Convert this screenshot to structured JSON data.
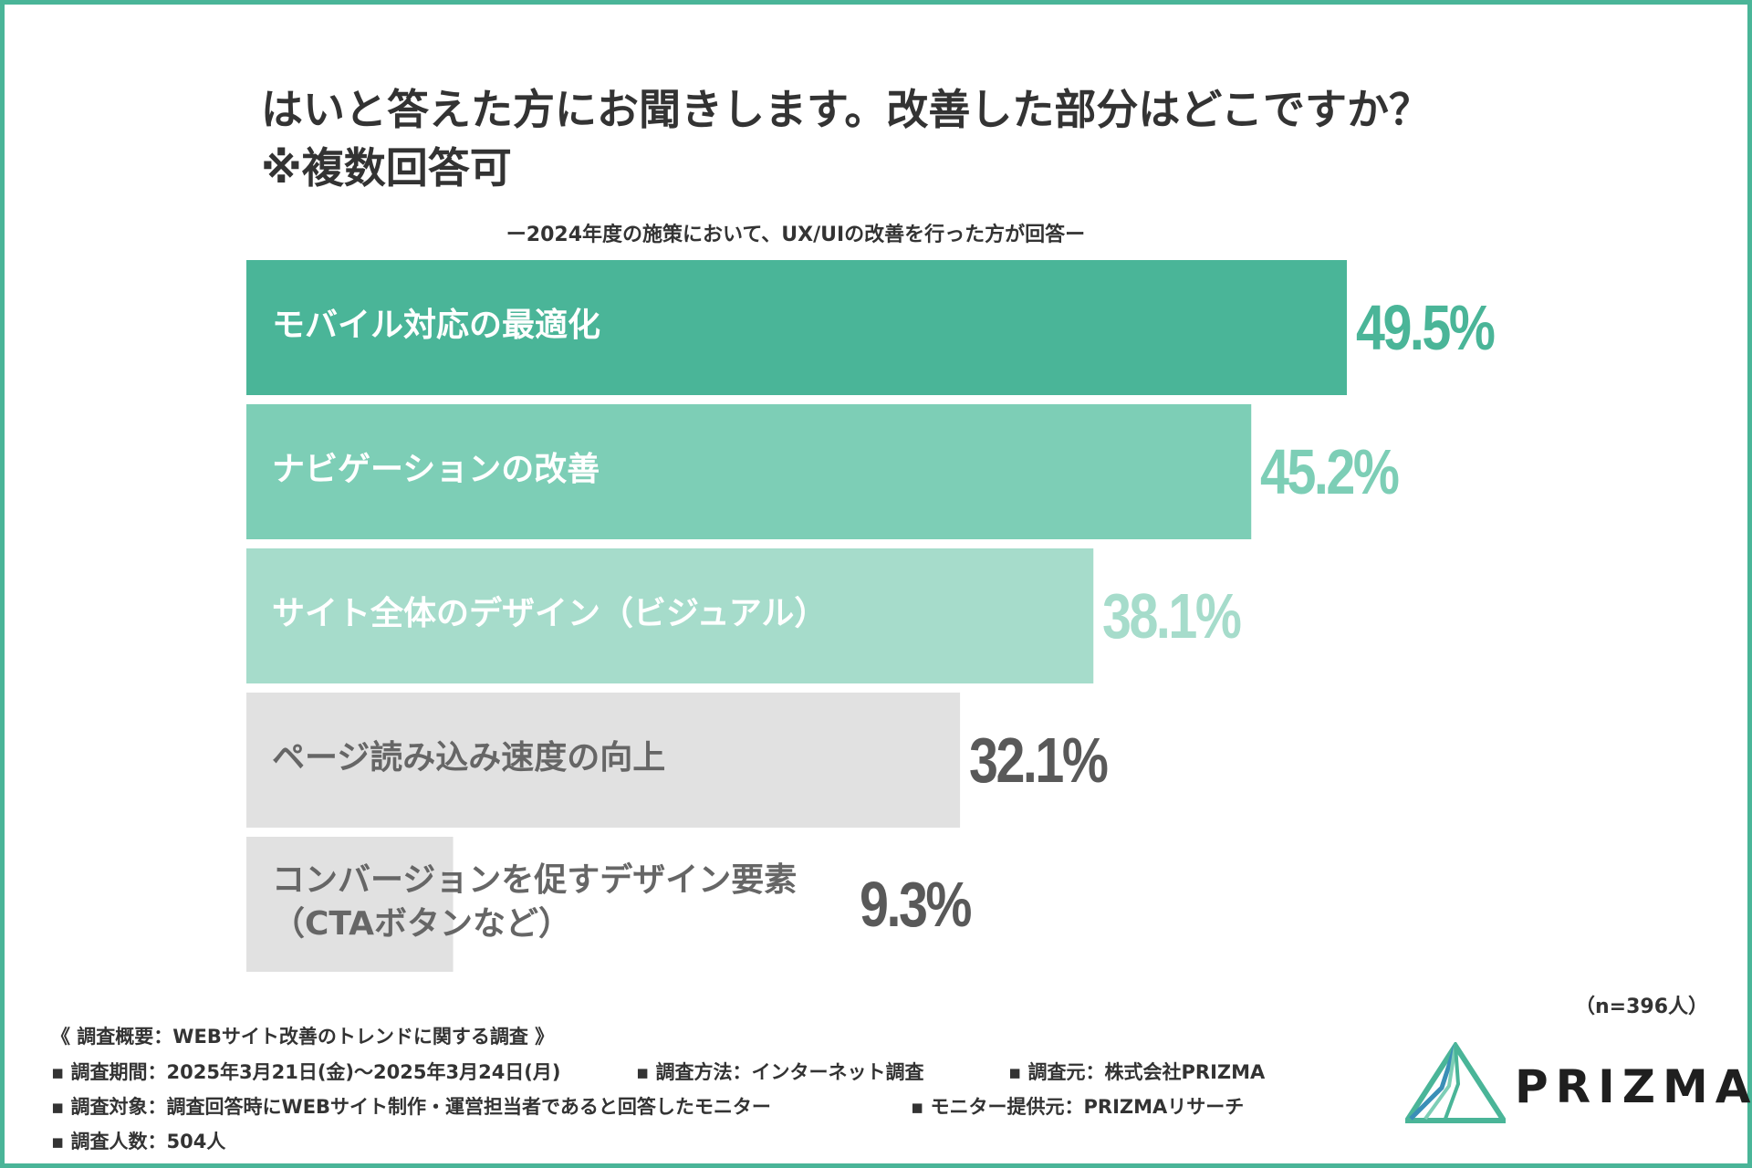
{
  "title": {
    "line1": "はいと答えた方にお聞きします。改善した部分はどこですか？",
    "line2": "※複数回答可"
  },
  "subtitle": "ー2024年度の施策において、UX/UIの改善を行った方が回答ー",
  "n_note": "（n=396人）",
  "chart_data": {
    "type": "bar",
    "orientation": "horizontal",
    "unit": "%",
    "categories": [
      "モバイル対応の最適化",
      "ナビゲーションの改善",
      "サイト全体のデザイン（ビジュアル）",
      "ページ読み込み速度の向上",
      "コンバージョンを促すデザイン要素（CTAボタンなど）"
    ],
    "category_lines": [
      [
        "モバイル対応の最適化"
      ],
      [
        "ナビゲーションの改善"
      ],
      [
        "サイト全体のデザイン（ビジュアル）"
      ],
      [
        "ページ読み込み速度の向上"
      ],
      [
        "コンバージョンを促すデザイン要素",
        "（CTAボタンなど）"
      ]
    ],
    "values": [
      49.5,
      45.2,
      38.1,
      32.1,
      9.3
    ],
    "value_labels": [
      "49.5%",
      "45.2%",
      "38.1%",
      "32.1%",
      "9.3%"
    ],
    "bar_colors": [
      "#4ab598",
      "#7dceb6",
      "#a6dccb",
      "#e1e1e1",
      "#e1e1e1"
    ],
    "label_colors": [
      "#ffffff",
      "#ffffff",
      "#ffffff",
      "#666666",
      "#666666"
    ],
    "value_colors": [
      "#4ab598",
      "#7dceb6",
      "#a6dccb",
      "#595959",
      "#595959"
    ],
    "xlim": [
      0,
      49.5
    ]
  },
  "footer": {
    "summary": "《 調査概要：WEBサイト改善のトレンドに関する調査 》",
    "period": "▪ 調査期間：2025年3月21日(金)〜2025年3月24日(月)",
    "method": "▪ 調査方法：インターネット調査",
    "source": "▪ 調査元：株式会社PRIZMA",
    "target": "▪ 調査対象：調査回答時にWEBサイト制作・運営担当者であると回答したモニター",
    "provider": "▪ モニター提供元：PRIZMAリサーチ",
    "count": "▪ 調査人数：504人"
  },
  "logo": {
    "text": "PRIZMA",
    "colors": [
      "#4ab598",
      "#3a8fb7",
      "#7dceb6"
    ]
  }
}
